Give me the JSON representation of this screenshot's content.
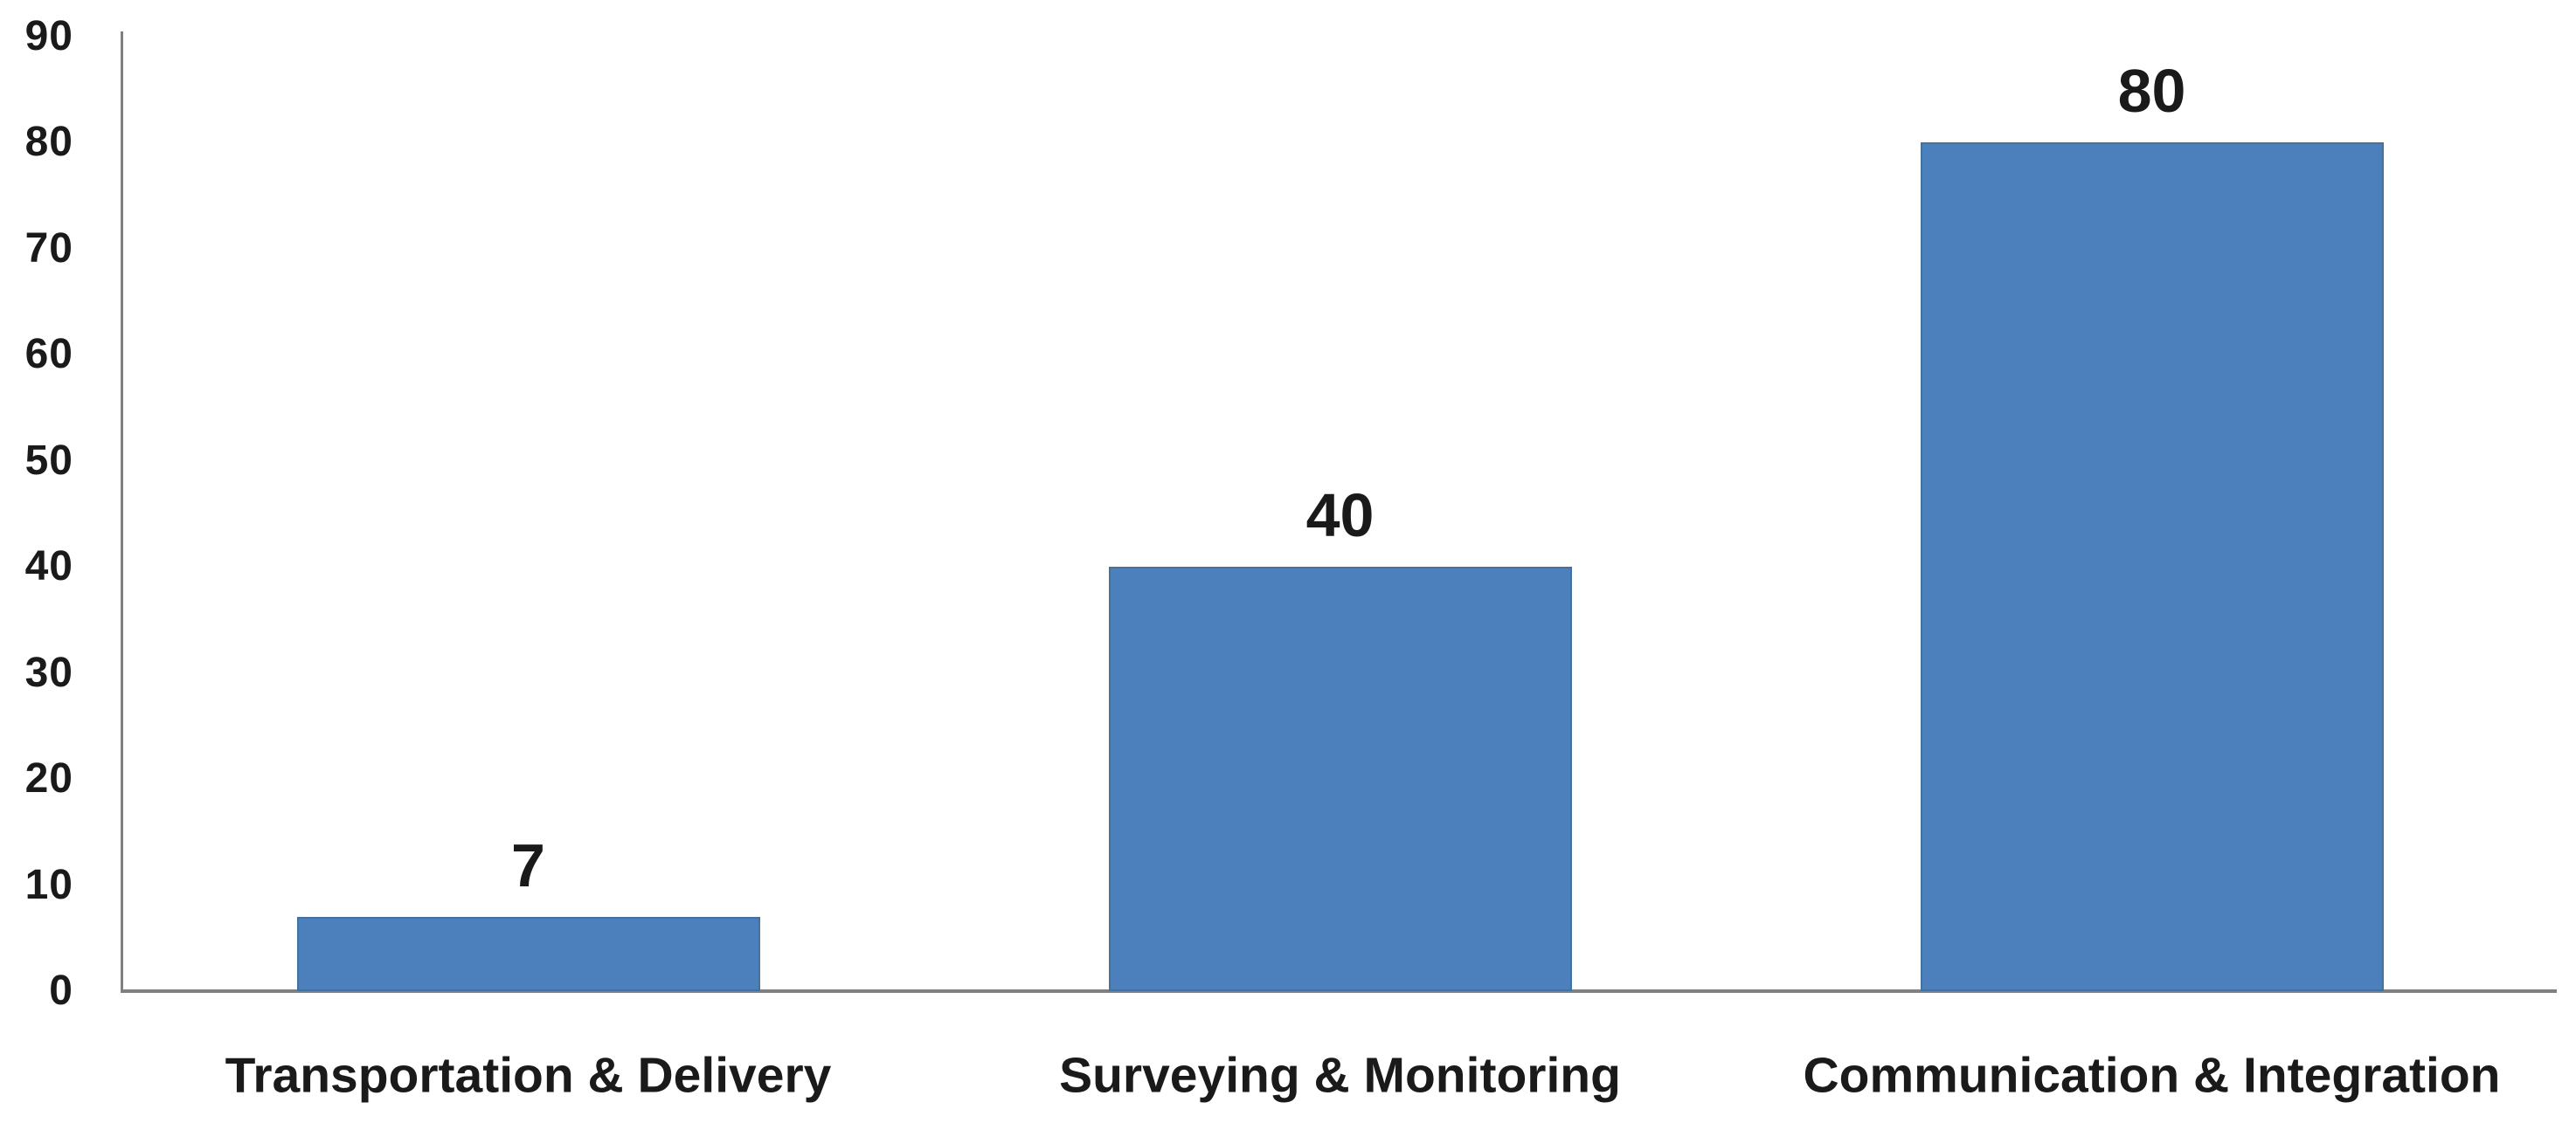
{
  "chart_data": {
    "type": "bar",
    "categories": [
      "Transportation & Delivery",
      "Surveying & Monitoring",
      "Communication & Integration"
    ],
    "values": [
      7,
      40,
      80
    ],
    "data_labels": [
      "7",
      "40",
      "80"
    ],
    "yticks": [
      0,
      10,
      20,
      30,
      40,
      50,
      60,
      70,
      80,
      90
    ],
    "ylim": [
      0,
      90
    ],
    "title": "",
    "xlabel": "",
    "ylabel": "",
    "grid": false,
    "legend": false,
    "layout": {
      "legend_position": "none",
      "data_labels_position": "above-bar",
      "tick_marks": "none"
    },
    "colors": {
      "bar": "#4C80BC",
      "bar_border": "#45719E",
      "axis": "#808080",
      "text": "#1A1A1A",
      "background": "#FFFFFF"
    }
  }
}
